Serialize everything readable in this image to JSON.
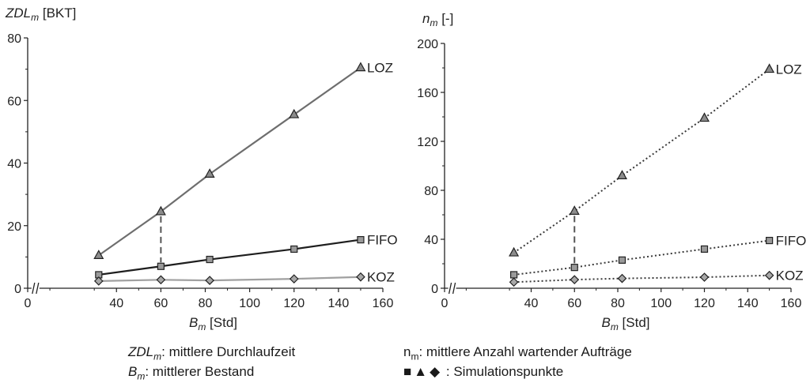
{
  "chart_data": [
    {
      "type": "line",
      "ylabel": {
        "main": "ZDL",
        "sub": "m",
        "unit": " [BKT]"
      },
      "xlabel": {
        "main": "B",
        "sub": "m",
        "unit": " [Std]"
      },
      "xlim": [
        0,
        160
      ],
      "ylim": [
        0,
        80
      ],
      "xticks": [
        0,
        40,
        60,
        80,
        100,
        120,
        140,
        160
      ],
      "yticks": [
        0,
        20,
        40,
        60,
        80
      ],
      "axis_break": "//",
      "series": [
        {
          "name": "LOZ",
          "marker": "triangle",
          "line": "solid",
          "color": "#6e6e6e",
          "x": [
            32,
            60,
            82,
            120,
            150
          ],
          "y": [
            10.5,
            24.5,
            36.5,
            55.5,
            70.5
          ]
        },
        {
          "name": "FIFO",
          "marker": "square",
          "line": "solid",
          "color": "#1e1e1e",
          "x": [
            32,
            60,
            82,
            120,
            150
          ],
          "y": [
            4.3,
            7,
            9.2,
            12.5,
            15.5
          ]
        },
        {
          "name": "KOZ",
          "marker": "diamond",
          "line": "solid",
          "color": "#a0a0a0",
          "x": [
            32,
            60,
            82,
            120,
            150
          ],
          "y": [
            2.3,
            2.7,
            2.5,
            3,
            3.6
          ]
        }
      ],
      "dashed_marker_x": 60
    },
    {
      "type": "line",
      "ylabel": {
        "main": "n",
        "sub": "m",
        "unit": " [-]"
      },
      "xlabel": {
        "main": "B",
        "sub": "m",
        "unit": " [Std]"
      },
      "xlim": [
        0,
        160
      ],
      "ylim": [
        0,
        200
      ],
      "xticks": [
        0,
        40,
        60,
        80,
        100,
        120,
        140,
        160
      ],
      "yticks": [
        0,
        40,
        80,
        120,
        160,
        200
      ],
      "axis_break": "//",
      "series": [
        {
          "name": "LOZ",
          "marker": "triangle",
          "line": "dotted",
          "color": "#6e6e6e",
          "x": [
            32,
            60,
            82,
            120,
            150
          ],
          "y": [
            29,
            63,
            92,
            139,
            179
          ]
        },
        {
          "name": "FIFO",
          "marker": "square",
          "line": "dotted",
          "color": "#1e1e1e",
          "x": [
            32,
            60,
            82,
            120,
            150
          ],
          "y": [
            11,
            17,
            23,
            32,
            39
          ]
        },
        {
          "name": "KOZ",
          "marker": "diamond",
          "line": "dotted",
          "color": "#a0a0a0",
          "x": [
            32,
            60,
            82,
            120,
            150
          ],
          "y": [
            5,
            7,
            8,
            9,
            10.5
          ]
        }
      ],
      "dashed_marker_x": 60
    }
  ],
  "legend": {
    "zdl": {
      "main": "ZDL",
      "sub": "m",
      "text": ": mittlere Durchlaufzeit"
    },
    "bm": {
      "main": "B",
      "sub": "m",
      "text": ": mittlerer Bestand"
    },
    "nm": {
      "main": "n",
      "sub": "m",
      "text": ": mittlere Anzahl wartender Aufträge"
    },
    "sim": {
      "symbols": "■▲◆",
      "text": " : Simulationspunkte"
    }
  }
}
